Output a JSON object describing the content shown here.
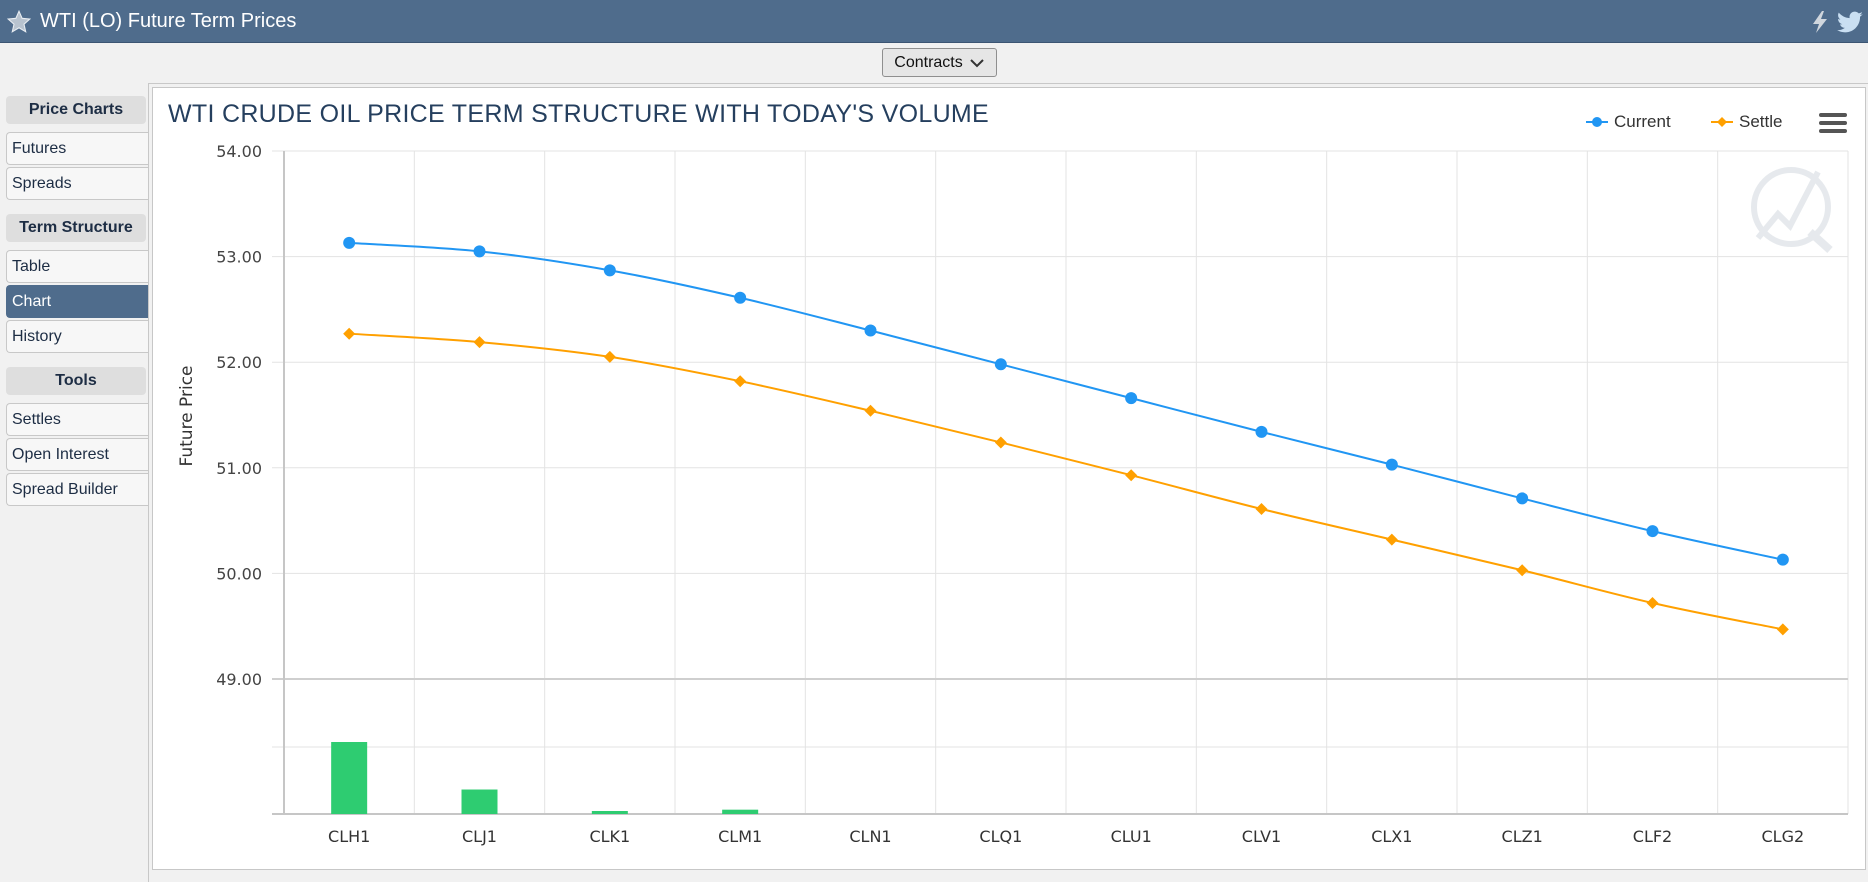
{
  "window": {
    "title": "WTI (LO) Future Term Prices"
  },
  "toolbar": {
    "contracts_label": "Contracts"
  },
  "sidebar": {
    "sections": [
      {
        "heading": "Price Charts",
        "items": [
          "Futures",
          "Spreads"
        ]
      },
      {
        "heading": "Term Structure",
        "items": [
          "Table",
          "Chart",
          "History"
        ],
        "active": "Chart"
      },
      {
        "heading": "Tools",
        "items": [
          "Settles",
          "Open Interest",
          "Spread Builder"
        ]
      }
    ]
  },
  "colors": {
    "header": "#4f6c8c",
    "current": "#2196f3",
    "settle": "#ffa000",
    "volume": "#2ecc71"
  },
  "icons": {
    "favorite": "star-icon",
    "alert": "lightning-icon",
    "share": "twitter-icon",
    "menu": "hamburger-menu-icon",
    "watermark": "logo-watermark"
  },
  "chart_data": {
    "type": "line",
    "title": "WTI CRUDE OIL PRICE TERM STRUCTURE WITH TODAY'S VOLUME",
    "ylabel": "Future Price",
    "xlabel": "",
    "categories": [
      "CLH1",
      "CLJ1",
      "CLK1",
      "CLM1",
      "CLN1",
      "CLQ1",
      "CLU1",
      "CLV1",
      "CLX1",
      "CLZ1",
      "CLF2",
      "CLG2"
    ],
    "ytick_labels": [
      "54.00",
      "53.00",
      "52.00",
      "51.00",
      "50.00",
      "49.00"
    ],
    "ylim": [
      49.0,
      54.0
    ],
    "legend": {
      "position": "top-right",
      "entries": [
        "Current",
        "Settle"
      ]
    },
    "series": [
      {
        "name": "Current",
        "marker": "circle",
        "values": [
          53.13,
          53.05,
          52.87,
          52.61,
          52.3,
          51.98,
          51.66,
          51.34,
          51.03,
          50.71,
          50.4,
          50.13
        ]
      },
      {
        "name": "Settle",
        "marker": "diamond",
        "values": [
          52.27,
          52.19,
          52.05,
          51.82,
          51.54,
          51.24,
          50.93,
          50.61,
          50.32,
          50.03,
          49.72,
          49.47
        ]
      }
    ],
    "volume": {
      "values": [
        100,
        34,
        4,
        6,
        0,
        0,
        0,
        0,
        0,
        0,
        0,
        0
      ],
      "unit": "relative"
    },
    "grid": true
  }
}
